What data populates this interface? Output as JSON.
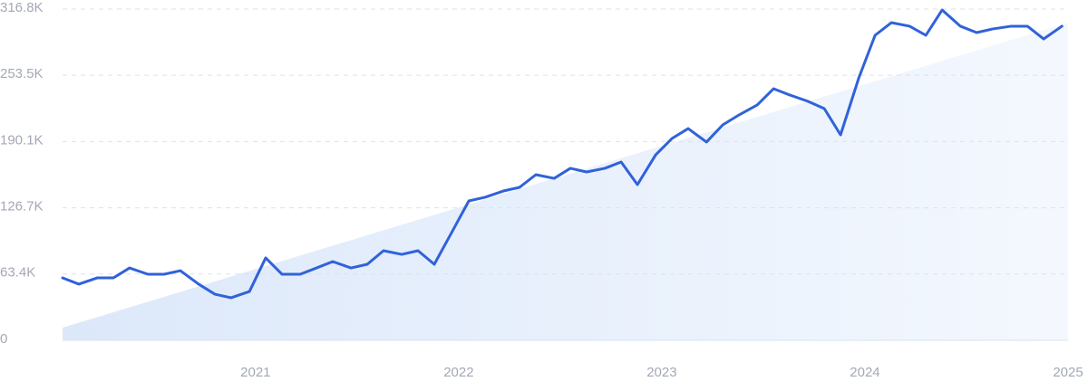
{
  "chart_data": {
    "type": "line",
    "x": [
      2020.05,
      2020.13,
      2020.22,
      2020.3,
      2020.38,
      2020.47,
      2020.55,
      2020.63,
      2020.72,
      2020.8,
      2020.88,
      2020.97,
      2021.05,
      2021.13,
      2021.22,
      2021.3,
      2021.38,
      2021.47,
      2021.55,
      2021.63,
      2021.72,
      2021.8,
      2021.88,
      2021.97,
      2022.05,
      2022.13,
      2022.22,
      2022.3,
      2022.38,
      2022.47,
      2022.55,
      2022.63,
      2022.72,
      2022.8,
      2022.88,
      2022.97,
      2023.05,
      2023.13,
      2023.22,
      2023.3,
      2023.38,
      2023.47,
      2023.55,
      2023.63,
      2023.72,
      2023.8,
      2023.88,
      2023.97,
      2024.05,
      2024.13,
      2024.22,
      2024.3,
      2024.38,
      2024.47,
      2024.55,
      2024.63,
      2024.72,
      2024.8,
      2024.88,
      2024.97
    ],
    "series": [
      {
        "color": "#3062d9",
        "values": [
          59700,
          53700,
          59700,
          59700,
          69200,
          63200,
          63200,
          66600,
          53700,
          44100,
          40700,
          46700,
          78800,
          63200,
          63200,
          69200,
          75300,
          69200,
          72700,
          85700,
          82200,
          85700,
          72700,
          104700,
          133300,
          136800,
          142800,
          146300,
          158400,
          154900,
          164500,
          161000,
          164500,
          170500,
          148900,
          177400,
          193000,
          202500,
          189600,
          206000,
          215500,
          225100,
          240600,
          234600,
          228500,
          221600,
          196500,
          251000,
          291700,
          303800,
          300400,
          291700,
          315900,
          300400,
          294300,
          297800,
          300400,
          300400,
          288200,
          300400
        ]
      }
    ],
    "trend": {
      "x": [
        2020.05,
        2025
      ],
      "values": [
        12100,
        303800
      ],
      "color": "#e4edfb"
    },
    "xlim": [
      2020.05,
      2025
    ],
    "xticks": [
      2021,
      2022,
      2023,
      2024,
      2025
    ],
    "ylim": [
      0,
      316800
    ],
    "yticks": [
      0,
      {
        "value": 63400,
        "label": "63.4K"
      },
      {
        "value": 126700,
        "label": "126.7K"
      },
      {
        "value": 190100,
        "label": "190.1K"
      },
      {
        "value": 253500,
        "label": "253.5K"
      },
      {
        "value": 316800,
        "label": "316.8K"
      }
    ],
    "grid": true
  }
}
